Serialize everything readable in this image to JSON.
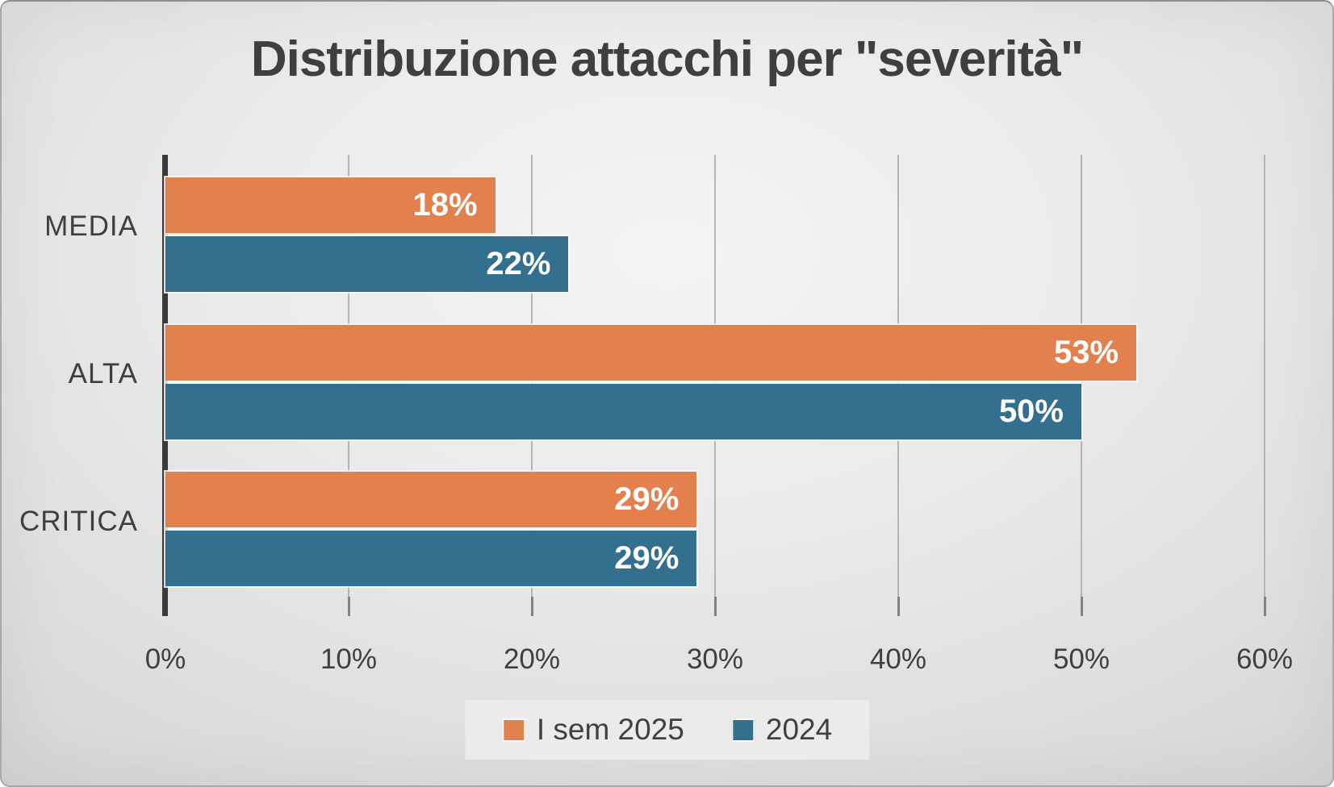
{
  "chart_data": {
    "type": "bar",
    "orientation": "horizontal",
    "title": "Distribuzione attacchi per \"severità\"",
    "categories": [
      "MEDIA",
      "ALTA",
      "CRITICA"
    ],
    "series": [
      {
        "name": "I sem 2025",
        "color": "#e2814e",
        "values": [
          18,
          53,
          29
        ]
      },
      {
        "name": "2024",
        "color": "#33708f",
        "values": [
          22,
          50,
          29
        ]
      }
    ],
    "data_labels": [
      [
        "18%",
        "53%",
        "29%"
      ],
      [
        "22%",
        "50%",
        "29%"
      ]
    ],
    "xlabel": "",
    "ylabel": "",
    "xlim": [
      0,
      60
    ],
    "x_tick_values": [
      0,
      10,
      20,
      30,
      40,
      50,
      60
    ],
    "x_tick_labels": [
      "0%",
      "10%",
      "20%",
      "30%",
      "40%",
      "50%",
      "60%"
    ],
    "grid": true,
    "legend_position": "bottom-center",
    "data_label_position": "inside-end",
    "data_label_color": "#ffffff"
  },
  "style_colors": {
    "title_text": "#3f3f3f",
    "axis_line": "#3a3a3a",
    "gridline": "#b5b5b5",
    "tick_mark": "#828282",
    "category_text": "#3f3f3f",
    "x_tick_text": "#3f3f3f",
    "legend_text": "#404040",
    "background": "#e6e6e6"
  }
}
